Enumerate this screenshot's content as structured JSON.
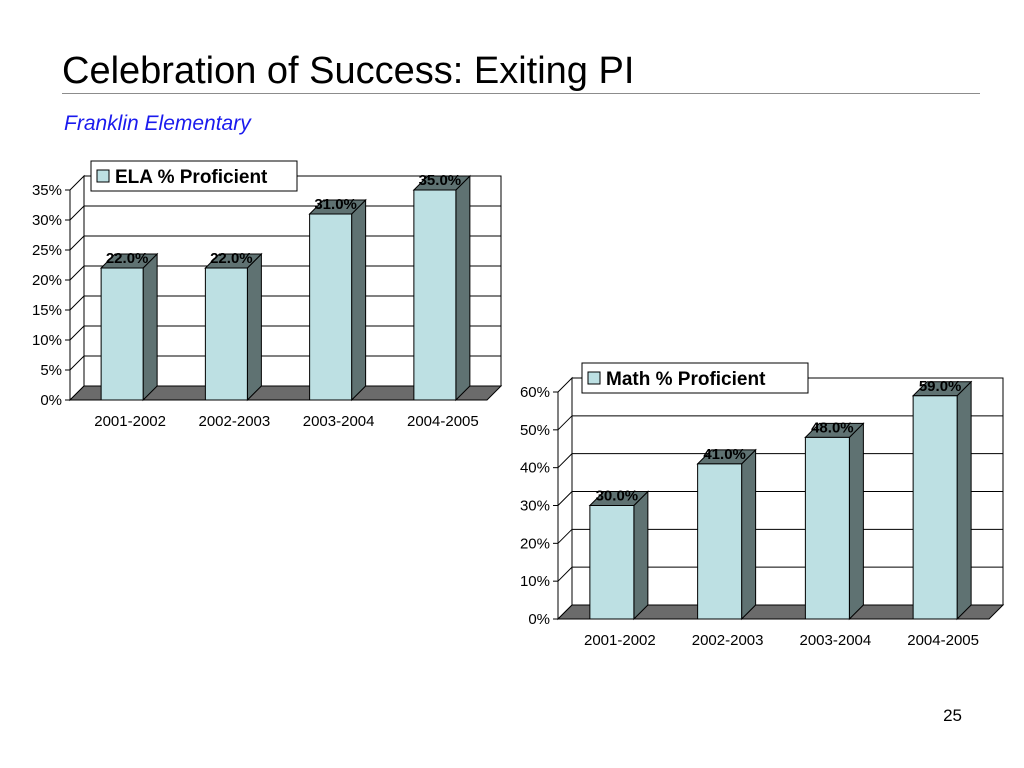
{
  "slide": {
    "title": "Celebration of Success: Exiting PI",
    "subtitle": "Franklin Elementary",
    "page_number": "25"
  },
  "colors": {
    "bar_front": "#bde0e3",
    "bar_side": "#5f7272",
    "floor": "#6b6b6b",
    "gridline": "#000000",
    "subtitle": "#1a1aee"
  },
  "chart_data": [
    {
      "type": "bar",
      "id": "ela",
      "categories": [
        "2001-2002",
        "2002-2003",
        "2003-2004",
        "2004-2005"
      ],
      "series": [
        {
          "name": "ELA % Proficient",
          "values": [
            22.0,
            22.0,
            31.0,
            35.0
          ]
        }
      ],
      "data_labels": [
        "22.0%",
        "22.0%",
        "31.0%",
        "35.0%"
      ],
      "yticks": [
        "0%",
        "5%",
        "10%",
        "15%",
        "20%",
        "25%",
        "30%",
        "35%"
      ],
      "ylim": [
        0,
        35
      ],
      "title": "",
      "xlabel": "",
      "ylabel": "",
      "grid": true,
      "legend_position": "top-left",
      "style": "3d-column"
    },
    {
      "type": "bar",
      "id": "math",
      "categories": [
        "2001-2002",
        "2002-2003",
        "2003-2004",
        "2004-2005"
      ],
      "series": [
        {
          "name": "Math % Proficient",
          "values": [
            30.0,
            41.0,
            48.0,
            59.0
          ]
        }
      ],
      "data_labels": [
        "30.0%",
        "41.0%",
        "48.0%",
        "59.0%"
      ],
      "yticks": [
        "0%",
        "10%",
        "20%",
        "30%",
        "40%",
        "50%",
        "60%"
      ],
      "ylim": [
        0,
        60
      ],
      "title": "",
      "xlabel": "",
      "ylabel": "",
      "grid": true,
      "legend_position": "top-left",
      "style": "3d-column"
    }
  ]
}
